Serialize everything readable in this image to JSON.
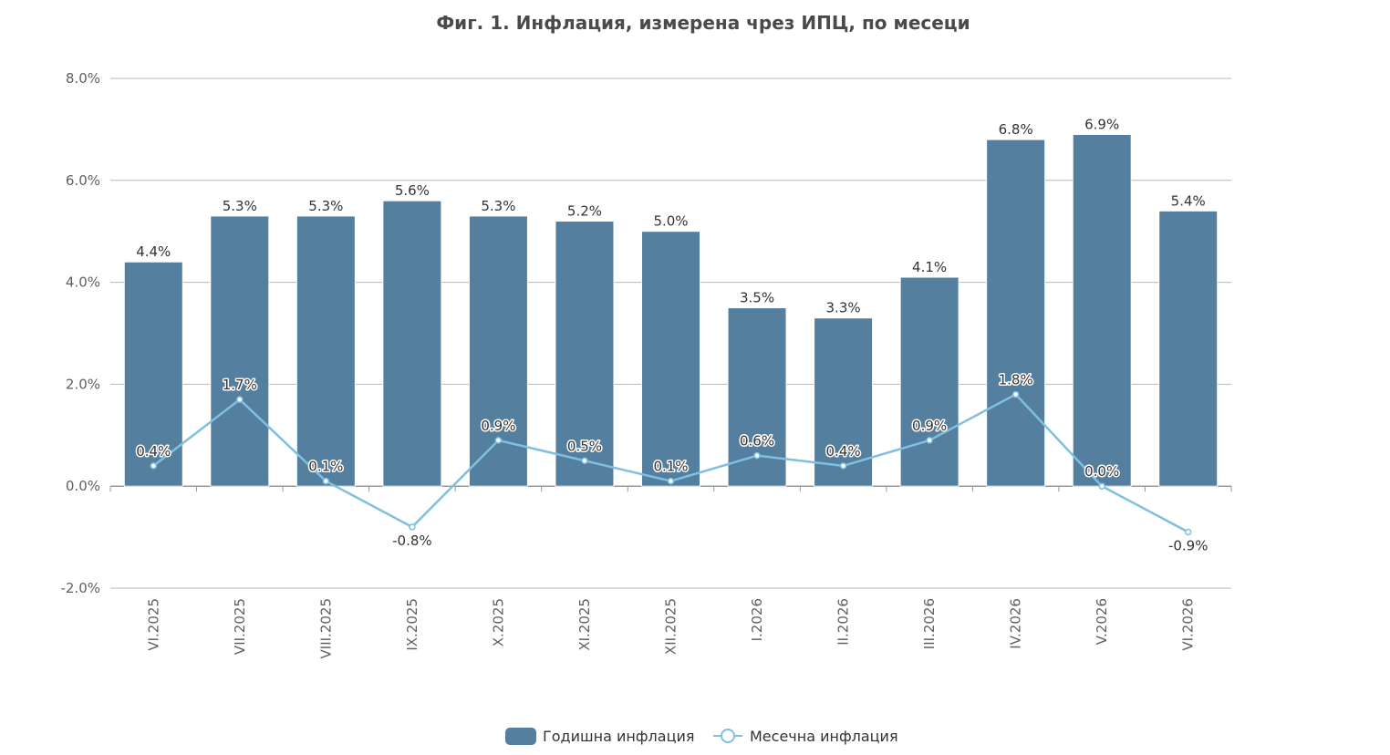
{
  "chart_data": {
    "type": "bar",
    "title": "Фиг. 1. Инфлация, измерена чрез ИПЦ, по месеци",
    "categories": [
      "VI.2025",
      "VII.2025",
      "VIII.2025",
      "IX.2025",
      "X.2025",
      "XI.2025",
      "XII.2025",
      "I.2026",
      "II.2026",
      "III.2026",
      "IV.2026",
      "V.2026",
      "VI.2026"
    ],
    "series": [
      {
        "name": "Годишна инфлация",
        "type": "bar",
        "color": "#557f9e",
        "values": [
          4.4,
          5.3,
          5.3,
          5.6,
          5.3,
          5.2,
          5.0,
          3.5,
          3.3,
          4.1,
          6.8,
          6.9,
          5.4
        ],
        "labels": [
          "4.4%",
          "5.3%",
          "5.3%",
          "5.6%",
          "5.3%",
          "5.2%",
          "5.0%",
          "3.5%",
          "3.3%",
          "4.1%",
          "6.8%",
          "6.9%",
          "5.4%"
        ]
      },
      {
        "name": "Месечна инфлация",
        "type": "line",
        "color": "#7fbfdf",
        "values": [
          0.4,
          1.7,
          0.1,
          -0.8,
          0.9,
          0.5,
          0.1,
          0.6,
          0.4,
          0.9,
          1.8,
          0.0,
          -0.9
        ],
        "labels": [
          "0.4%",
          "1.7%",
          "0.1%",
          "-0.8%",
          "0.9%",
          "0.5%",
          "0.1%",
          "0.6%",
          "0.4%",
          "0.9%",
          "1.8%",
          "0.0%",
          "-0.9%"
        ]
      }
    ],
    "ylim": [
      -2,
      8
    ],
    "yticks": [
      8,
      6,
      4,
      2,
      0,
      -2
    ],
    "ytick_labels": [
      "8.0%",
      "6.0%",
      "4.0%",
      "2.0%",
      "0.0%",
      "-2.0%"
    ],
    "xlabel": "",
    "ylabel": "",
    "grid": true,
    "legend_position": "bottom-center"
  }
}
